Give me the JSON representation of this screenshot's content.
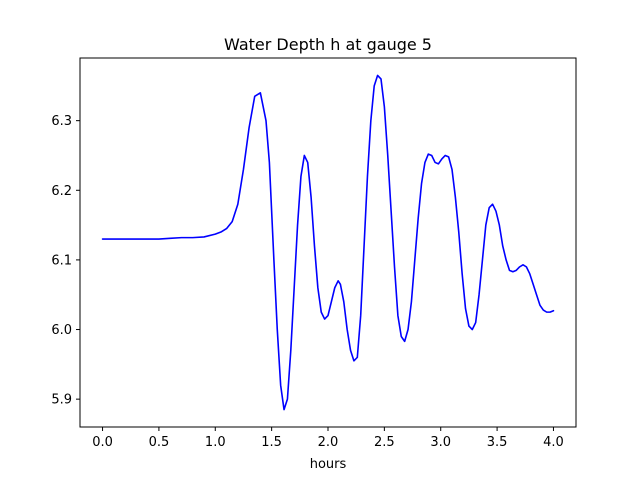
{
  "chart_data": {
    "type": "line",
    "title": "Water Depth h at gauge 5",
    "xlabel": "hours",
    "ylabel": "",
    "xlim": [
      -0.2,
      4.2
    ],
    "ylim": [
      5.86,
      6.39
    ],
    "xticks": [
      0.0,
      0.5,
      1.0,
      1.5,
      2.0,
      2.5,
      3.0,
      3.5,
      4.0
    ],
    "xtick_labels": [
      "0.0",
      "0.5",
      "1.0",
      "1.5",
      "2.0",
      "2.5",
      "3.0",
      "3.5",
      "4.0"
    ],
    "yticks": [
      5.9,
      6.0,
      6.1,
      6.2,
      6.3
    ],
    "ytick_labels": [
      "5.9",
      "6.0",
      "6.1",
      "6.2",
      "6.3"
    ],
    "grid": false,
    "legend": "none",
    "series": [
      {
        "color": "#0000ff",
        "x": [
          0.0,
          0.2,
          0.4,
          0.5,
          0.6,
          0.7,
          0.8,
          0.9,
          1.0,
          1.05,
          1.1,
          1.15,
          1.2,
          1.25,
          1.3,
          1.35,
          1.4,
          1.45,
          1.48,
          1.52,
          1.55,
          1.58,
          1.61,
          1.64,
          1.67,
          1.7,
          1.73,
          1.76,
          1.79,
          1.82,
          1.85,
          1.88,
          1.91,
          1.94,
          1.97,
          2.0,
          2.03,
          2.06,
          2.09,
          2.11,
          2.14,
          2.17,
          2.2,
          2.23,
          2.26,
          2.29,
          2.32,
          2.35,
          2.38,
          2.41,
          2.44,
          2.47,
          2.5,
          2.53,
          2.56,
          2.59,
          2.62,
          2.65,
          2.68,
          2.71,
          2.74,
          2.77,
          2.8,
          2.83,
          2.86,
          2.89,
          2.92,
          2.95,
          2.98,
          3.01,
          3.04,
          3.07,
          3.1,
          3.13,
          3.16,
          3.19,
          3.22,
          3.25,
          3.28,
          3.31,
          3.34,
          3.37,
          3.4,
          3.43,
          3.46,
          3.49,
          3.52,
          3.55,
          3.58,
          3.61,
          3.64,
          3.67,
          3.7,
          3.73,
          3.76,
          3.79,
          3.82,
          3.85,
          3.88,
          3.91,
          3.94,
          3.97,
          4.0
        ],
        "y": [
          6.13,
          6.13,
          6.13,
          6.13,
          6.131,
          6.132,
          6.132,
          6.133,
          6.137,
          6.14,
          6.145,
          6.155,
          6.18,
          6.23,
          6.29,
          6.335,
          6.34,
          6.3,
          6.24,
          6.1,
          6.0,
          5.92,
          5.885,
          5.9,
          5.97,
          6.06,
          6.15,
          6.22,
          6.25,
          6.24,
          6.19,
          6.12,
          6.06,
          6.025,
          6.015,
          6.02,
          6.04,
          6.06,
          6.07,
          6.065,
          6.04,
          6.0,
          5.97,
          5.955,
          5.96,
          6.02,
          6.12,
          6.22,
          6.3,
          6.35,
          6.365,
          6.36,
          6.32,
          6.25,
          6.17,
          6.09,
          6.02,
          5.99,
          5.983,
          6.0,
          6.04,
          6.1,
          6.16,
          6.21,
          6.24,
          6.252,
          6.25,
          6.24,
          6.238,
          6.245,
          6.25,
          6.248,
          6.23,
          6.19,
          6.14,
          6.08,
          6.03,
          6.005,
          6.0,
          6.01,
          6.05,
          6.1,
          6.15,
          6.175,
          6.18,
          6.17,
          6.15,
          6.12,
          6.1,
          6.085,
          6.083,
          6.085,
          6.09,
          6.093,
          6.09,
          6.08,
          6.065,
          6.05,
          6.035,
          6.028,
          6.025,
          6.025,
          6.027
        ]
      }
    ]
  }
}
